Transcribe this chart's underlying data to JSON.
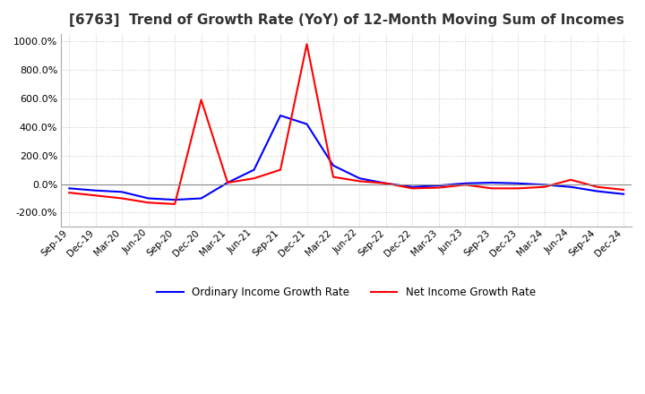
{
  "title": "[6763]  Trend of Growth Rate (YoY) of 12-Month Moving Sum of Incomes",
  "title_fontsize": 11,
  "legend_entries": [
    "Ordinary Income Growth Rate",
    "Net Income Growth Rate"
  ],
  "line_colors": [
    "blue",
    "red"
  ],
  "x_labels": [
    "Sep-19",
    "Dec-19",
    "Mar-20",
    "Jun-20",
    "Sep-20",
    "Dec-20",
    "Mar-21",
    "Jun-21",
    "Sep-21",
    "Dec-21",
    "Mar-22",
    "Jun-22",
    "Sep-22",
    "Dec-22",
    "Mar-23",
    "Jun-23",
    "Sep-23",
    "Dec-23",
    "Mar-24",
    "Jun-24",
    "Sep-24",
    "Dec-24"
  ],
  "ylim": [
    -300,
    1050
  ],
  "yticks": [
    -200,
    0,
    200,
    400,
    600,
    800,
    1000
  ],
  "ordinary_income_growth": [
    -30,
    -45,
    -55,
    -100,
    -110,
    -100,
    10,
    100,
    480,
    420,
    130,
    40,
    5,
    -20,
    -10,
    5,
    10,
    5,
    -5,
    -20,
    -50,
    -70
  ],
  "net_income_growth": [
    -60,
    -80,
    -100,
    -130,
    -140,
    590,
    10,
    40,
    100,
    980,
    50,
    20,
    5,
    -30,
    -25,
    -5,
    -30,
    -30,
    -20,
    30,
    -20,
    -40
  ],
  "background_color": "#ffffff",
  "grid_color": "#c8c8c8",
  "plot_bg_color": "#ffffff",
  "line_width": 1.5
}
